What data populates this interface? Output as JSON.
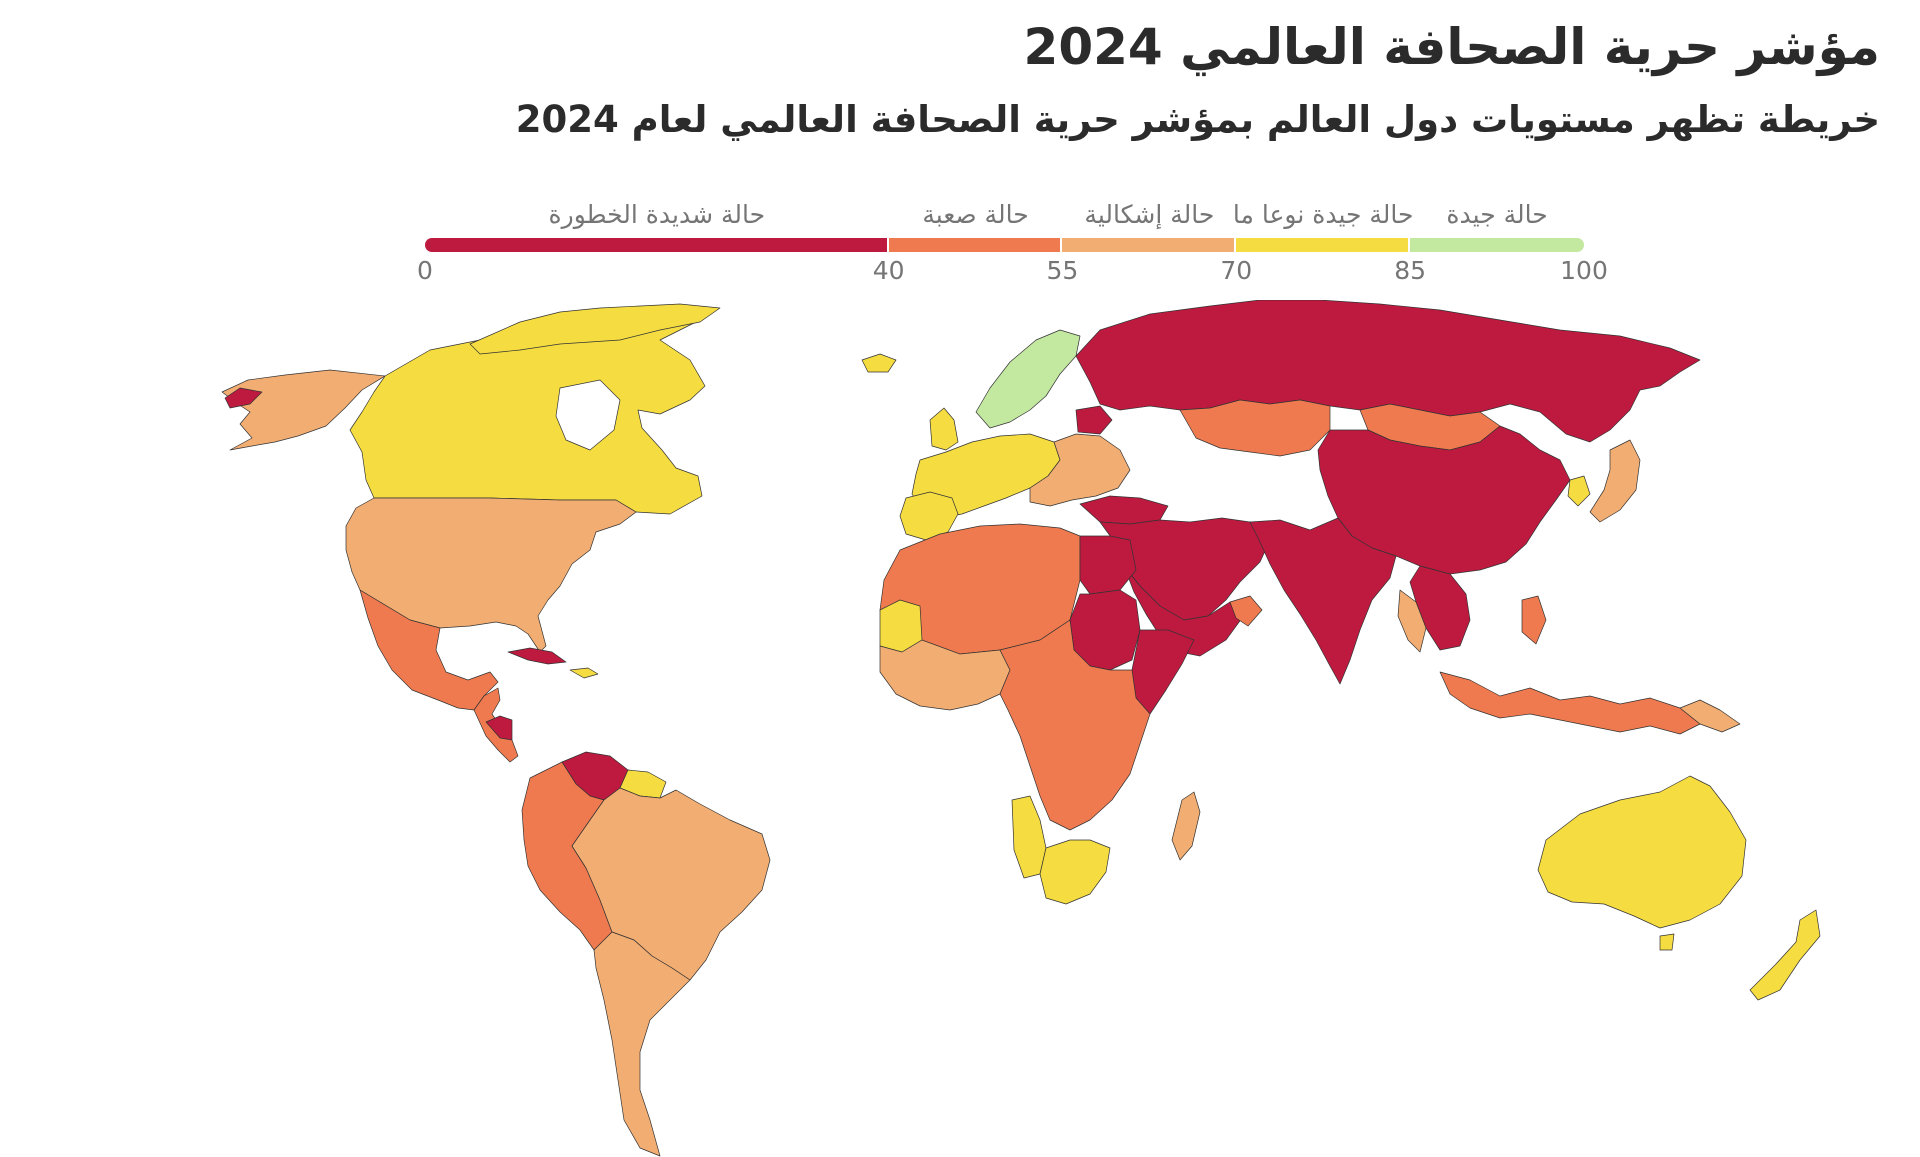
{
  "title": "مؤشر حرية الصحافة العالمي 2024",
  "subtitle": "خريطة تظهر مستويات دول العالم بمؤشر حرية الصحافة العالمي لعام 2024",
  "legend": {
    "categories": [
      {
        "label": "حالة شديدة الخطورة",
        "from": 0,
        "to": 40,
        "color": "#be1a3f"
      },
      {
        "label": "حالة صعبة",
        "from": 40,
        "to": 55,
        "color": "#f07a4f"
      },
      {
        "label": "حالة إشكالية",
        "from": 55,
        "to": 70,
        "color": "#f2ad72"
      },
      {
        "label": "حالة جيدة نوعا ما",
        "from": 70,
        "to": 85,
        "color": "#f5dc41"
      },
      {
        "label": "حالة جيدة",
        "from": 85,
        "to": 100,
        "color": "#c3e8a0"
      }
    ],
    "ticks": [
      "0",
      "40",
      "55",
      "70",
      "85",
      "100"
    ]
  },
  "regions": [
    {
      "name": "greenland",
      "status": "good"
    },
    {
      "name": "iceland",
      "status": "fairly-good"
    },
    {
      "name": "nordics",
      "status": "good"
    },
    {
      "name": "canada",
      "status": "fairly-good"
    },
    {
      "name": "alaska",
      "status": "problematic"
    },
    {
      "name": "usa",
      "status": "problematic"
    },
    {
      "name": "mexico",
      "status": "difficult"
    },
    {
      "name": "nicaragua",
      "status": "very-serious"
    },
    {
      "name": "cuba",
      "status": "very-serious"
    },
    {
      "name": "venezuela",
      "status": "very-serious"
    },
    {
      "name": "brazil",
      "status": "problematic"
    },
    {
      "name": "andean-countries",
      "status": "difficult"
    },
    {
      "name": "southern-cone",
      "status": "problematic"
    },
    {
      "name": "western-europe",
      "status": "fairly-good"
    },
    {
      "name": "eastern-europe",
      "status": "problematic"
    },
    {
      "name": "russia",
      "status": "very-serious"
    },
    {
      "name": "china",
      "status": "very-serious"
    },
    {
      "name": "mongolia",
      "status": "difficult"
    },
    {
      "name": "kazakhstan",
      "status": "difficult"
    },
    {
      "name": "middle-east",
      "status": "very-serious"
    },
    {
      "name": "egypt",
      "status": "very-serious"
    },
    {
      "name": "sudan",
      "status": "very-serious"
    },
    {
      "name": "north-africa",
      "status": "difficult"
    },
    {
      "name": "mauritania",
      "status": "fairly-good"
    },
    {
      "name": "central-africa",
      "status": "difficult"
    },
    {
      "name": "namibia",
      "status": "fairly-good"
    },
    {
      "name": "south-africa",
      "status": "fairly-good"
    },
    {
      "name": "australia",
      "status": "fairly-good"
    },
    {
      "name": "new-zealand",
      "status": "fairly-good"
    },
    {
      "name": "japan",
      "status": "problematic"
    },
    {
      "name": "indonesia",
      "status": "difficult"
    }
  ]
}
